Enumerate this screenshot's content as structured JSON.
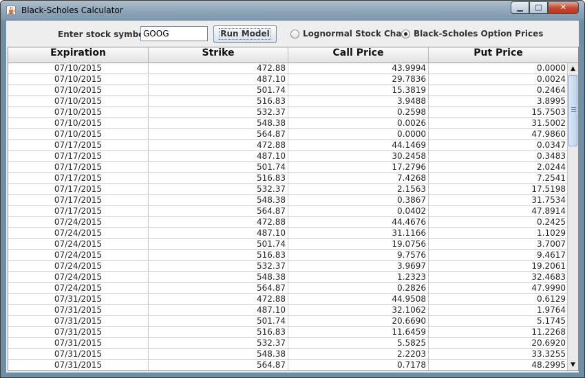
{
  "window": {
    "title": "Black-Scholes Calculator"
  },
  "toolbar": {
    "symbol_label": "Enter stock symbol:",
    "symbol_value": "GOOG",
    "run_label": "Run Model",
    "radio_lognormal": "Lognormal Stock Chart",
    "radio_blackscholes": "Black-Scholes Option Prices",
    "selected_radio": "Black-Scholes Option Prices"
  },
  "table": {
    "columns": [
      "Expiration",
      "Strike",
      "Call Price",
      "Put Price"
    ],
    "rows": [
      [
        "07/10/2015",
        "472.88",
        "43.9994",
        "0.0000"
      ],
      [
        "07/10/2015",
        "487.10",
        "29.7836",
        "0.0024"
      ],
      [
        "07/10/2015",
        "501.74",
        "15.3819",
        "0.2464"
      ],
      [
        "07/10/2015",
        "516.83",
        "3.9488",
        "3.8995"
      ],
      [
        "07/10/2015",
        "532.37",
        "0.2598",
        "15.7503"
      ],
      [
        "07/10/2015",
        "548.38",
        "0.0026",
        "31.5002"
      ],
      [
        "07/10/2015",
        "564.87",
        "0.0000",
        "47.9860"
      ],
      [
        "07/17/2015",
        "472.88",
        "44.1469",
        "0.0347"
      ],
      [
        "07/17/2015",
        "487.10",
        "30.2458",
        "0.3483"
      ],
      [
        "07/17/2015",
        "501.74",
        "17.2796",
        "2.0244"
      ],
      [
        "07/17/2015",
        "516.83",
        "7.4268",
        "7.2541"
      ],
      [
        "07/17/2015",
        "532.37",
        "2.1563",
        "17.5198"
      ],
      [
        "07/17/2015",
        "548.38",
        "0.3867",
        "31.7534"
      ],
      [
        "07/17/2015",
        "564.87",
        "0.0402",
        "47.8914"
      ],
      [
        "07/24/2015",
        "472.88",
        "44.4676",
        "0.2425"
      ],
      [
        "07/24/2015",
        "487.10",
        "31.1166",
        "1.1029"
      ],
      [
        "07/24/2015",
        "501.74",
        "19.0756",
        "3.7007"
      ],
      [
        "07/24/2015",
        "516.83",
        "9.7576",
        "9.4617"
      ],
      [
        "07/24/2015",
        "532.37",
        "3.9697",
        "19.2061"
      ],
      [
        "07/24/2015",
        "548.38",
        "1.2323",
        "32.4683"
      ],
      [
        "07/24/2015",
        "564.87",
        "0.2826",
        "47.9990"
      ],
      [
        "07/31/2015",
        "472.88",
        "44.9508",
        "0.6129"
      ],
      [
        "07/31/2015",
        "487.10",
        "32.1062",
        "1.9764"
      ],
      [
        "07/31/2015",
        "501.74",
        "20.6690",
        "5.1745"
      ],
      [
        "07/31/2015",
        "516.83",
        "11.6459",
        "11.2268"
      ],
      [
        "07/31/2015",
        "532.37",
        "5.5825",
        "20.6920"
      ],
      [
        "07/31/2015",
        "548.38",
        "2.2203",
        "33.3255"
      ],
      [
        "07/31/2015",
        "564.87",
        "0.7178",
        "48.2995"
      ]
    ]
  },
  "icons": {
    "app": "java-cup-icon",
    "minimize": "minimize-icon",
    "maximize": "maximize-icon",
    "close": "close-icon",
    "scroll_up": "scroll-up-arrow-icon",
    "scroll_down": "scroll-down-arrow-icon"
  },
  "colors": {
    "titlebar": "#8ea5b9",
    "close_button": "#c7452c",
    "panel_background": "#eeeeee"
  }
}
